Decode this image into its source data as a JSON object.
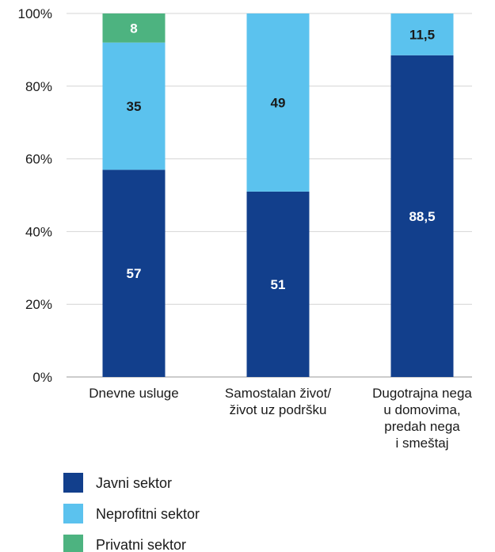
{
  "chart_data": {
    "type": "bar",
    "stacked": true,
    "y_tick_labels": [
      "0%",
      "20%",
      "40%",
      "60%",
      "80%",
      "100%"
    ],
    "ylim": [
      0,
      100
    ],
    "grid": true,
    "categories": [
      [
        "Dnevne usluge"
      ],
      [
        "Samostalan život/",
        "život uz podršku"
      ],
      [
        "Dugotrajna nega",
        "u domovima,",
        "predah nega",
        "i smeštaj"
      ]
    ],
    "series": [
      {
        "name": "Javni sektor",
        "color": "#123f8c",
        "label_color": "#ffffff",
        "values": [
          57,
          51,
          88.5
        ],
        "labels": [
          "57",
          "51",
          "88,5"
        ]
      },
      {
        "name": "Neprofitni sektor",
        "color": "#5bc2ee",
        "label_color": "#1a1a1a",
        "values": [
          35,
          49,
          11.5
        ],
        "labels": [
          "35",
          "49",
          "11,5"
        ]
      },
      {
        "name": "Privatni sektor",
        "color": "#4db380",
        "label_color": "#ffffff",
        "values": [
          8,
          0,
          0
        ],
        "labels": [
          "8",
          "",
          ""
        ]
      }
    ],
    "legend_placement": "bottom-left"
  }
}
